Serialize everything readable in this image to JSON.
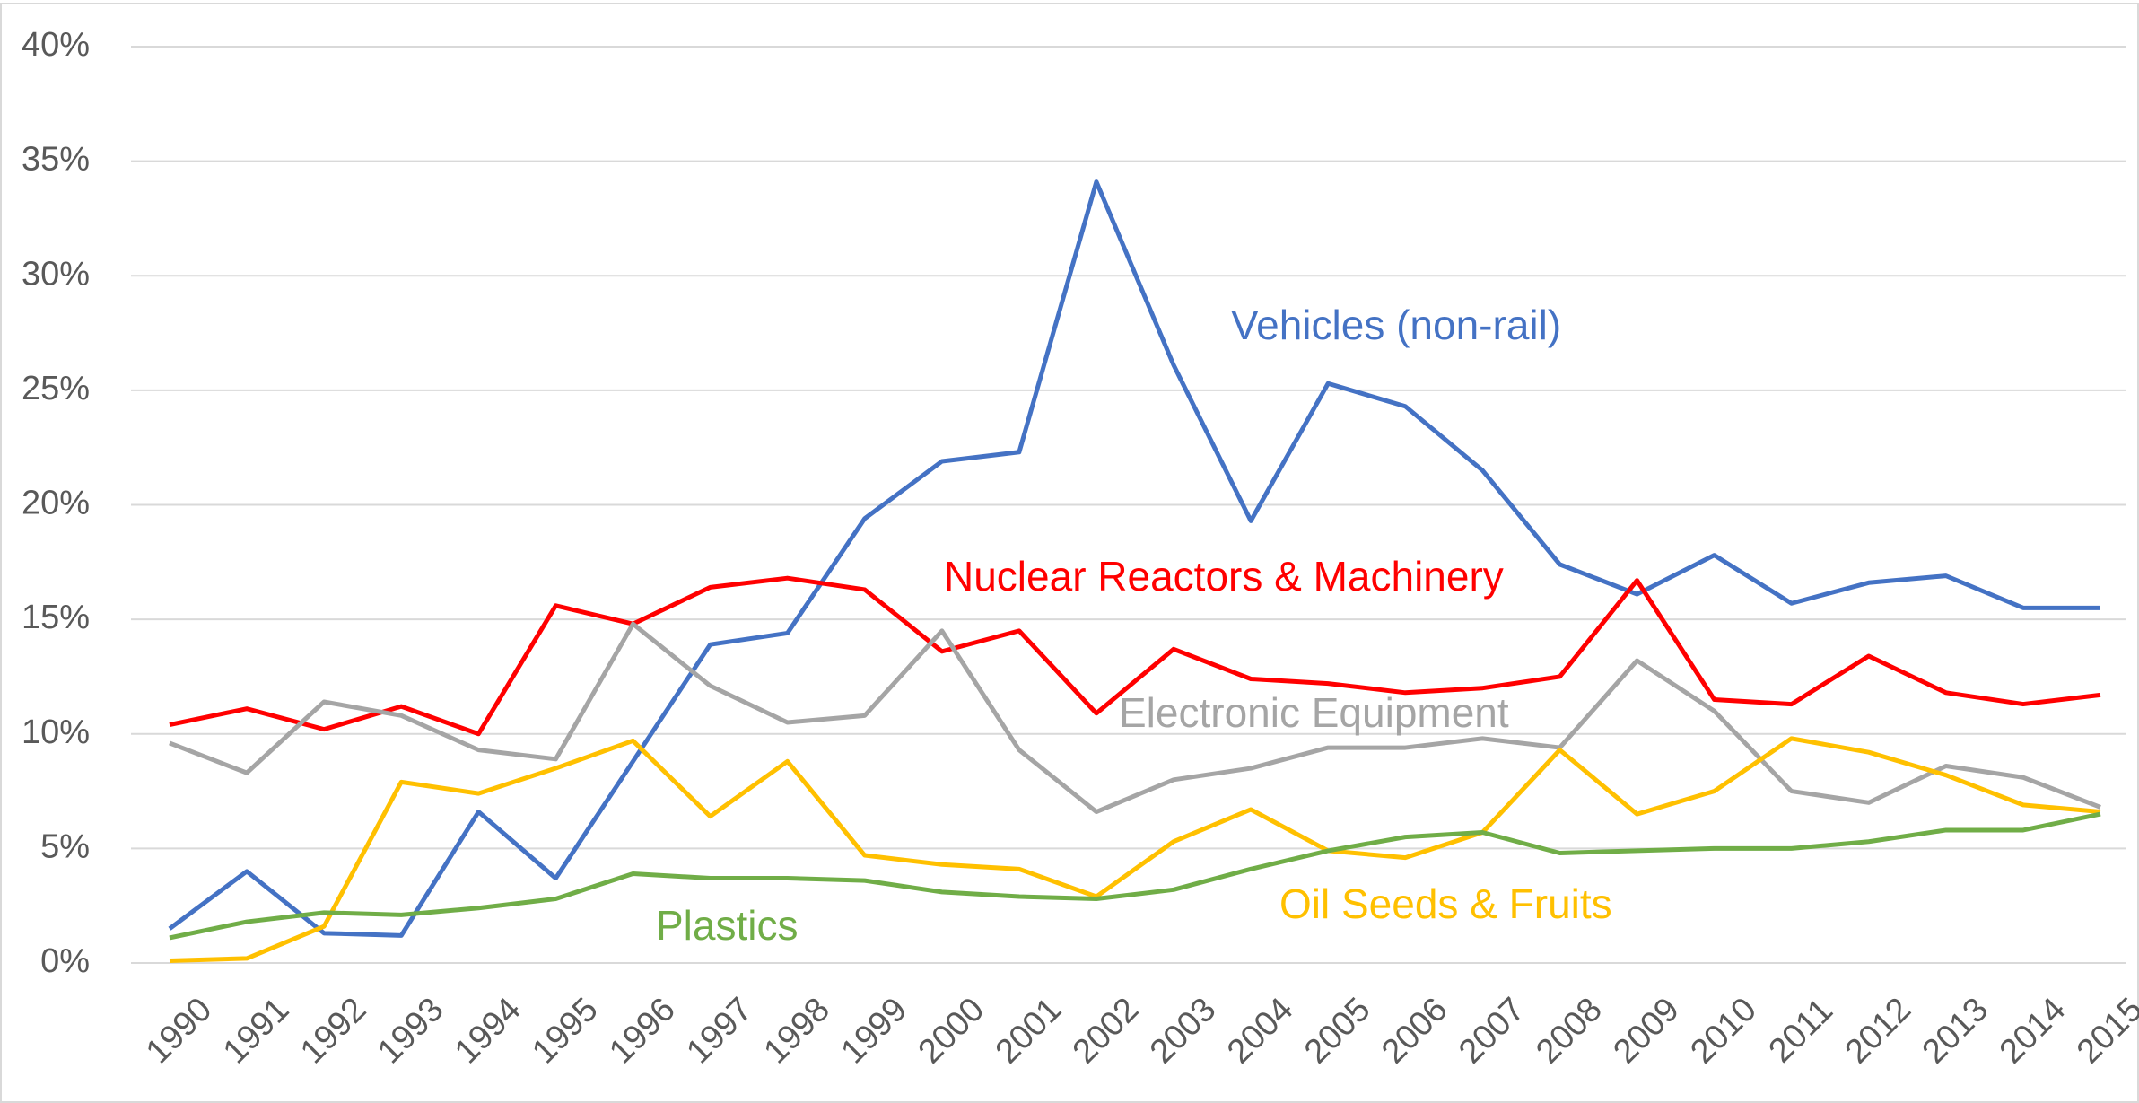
{
  "chart_data": {
    "type": "line",
    "categories": [
      "1990",
      "1991",
      "1992",
      "1993",
      "1994",
      "1995",
      "1996",
      "1997",
      "1998",
      "1999",
      "2000",
      "2001",
      "2002",
      "2003",
      "2004",
      "2005",
      "2006",
      "2007",
      "2008",
      "2009",
      "2010",
      "2011",
      "2012",
      "2013",
      "2014",
      "2015"
    ],
    "series": [
      {
        "name": "Vehicles (non-rail)",
        "color": "#4472c4",
        "values": [
          1.5,
          4.0,
          1.3,
          1.2,
          6.6,
          3.7,
          8.8,
          13.9,
          14.4,
          19.4,
          21.9,
          22.3,
          34.1,
          26.1,
          19.3,
          25.3,
          24.3,
          21.5,
          17.4,
          16.1,
          17.8,
          15.7,
          16.6,
          16.9,
          15.5,
          15.5
        ]
      },
      {
        "name": "Nuclear Reactors & Machinery",
        "color": "#ff0000",
        "values": [
          10.4,
          11.1,
          10.2,
          11.2,
          10.0,
          15.6,
          14.8,
          16.4,
          16.8,
          16.3,
          13.6,
          14.5,
          10.9,
          13.7,
          12.4,
          12.2,
          11.8,
          12.0,
          12.5,
          16.7,
          11.5,
          11.3,
          13.4,
          11.8,
          11.3,
          11.7
        ]
      },
      {
        "name": "Electronic Equipment",
        "color": "#a5a5a5",
        "values": [
          9.6,
          8.3,
          11.4,
          10.8,
          9.3,
          8.9,
          14.8,
          12.1,
          10.5,
          10.8,
          14.5,
          9.3,
          6.6,
          8.0,
          8.5,
          9.4,
          9.4,
          9.8,
          9.4,
          13.2,
          11.0,
          7.5,
          7.0,
          8.6,
          8.1,
          6.8
        ]
      },
      {
        "name": "Oil Seeds & Fruits",
        "color": "#ffc000",
        "values": [
          0.1,
          0.2,
          1.6,
          7.9,
          7.4,
          8.5,
          9.7,
          6.4,
          8.8,
          4.7,
          4.3,
          4.1,
          2.9,
          5.3,
          6.7,
          4.9,
          4.6,
          5.7,
          9.3,
          6.5,
          7.5,
          9.8,
          9.2,
          8.2,
          6.9,
          6.6
        ]
      },
      {
        "name": "Plastics",
        "color": "#70ad47",
        "values": [
          1.1,
          1.8,
          2.2,
          2.1,
          2.4,
          2.8,
          3.9,
          3.7,
          3.7,
          3.6,
          3.1,
          2.9,
          2.8,
          3.2,
          4.1,
          4.9,
          5.5,
          5.7,
          4.8,
          4.9,
          5.0,
          5.0,
          5.3,
          5.8,
          5.8,
          6.5
        ]
      }
    ],
    "ylim": [
      0,
      40
    ],
    "yticks": [
      {
        "value": 0,
        "label": "0%"
      },
      {
        "value": 5,
        "label": "5%"
      },
      {
        "value": 10,
        "label": "10%"
      },
      {
        "value": 15,
        "label": "15%"
      },
      {
        "value": 20,
        "label": "20%"
      },
      {
        "value": 25,
        "label": "25%"
      },
      {
        "value": 30,
        "label": "30%"
      },
      {
        "value": 35,
        "label": "35%"
      },
      {
        "value": 40,
        "label": "40%"
      }
    ],
    "grid": true
  }
}
